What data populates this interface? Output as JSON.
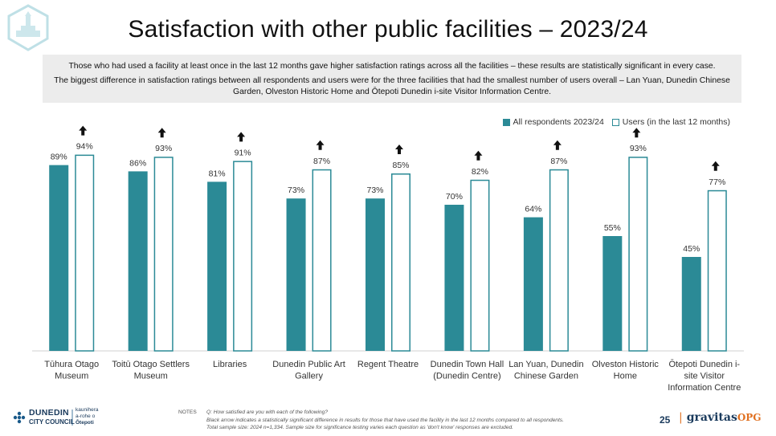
{
  "title": "Satisfaction with other public facilities – 2023/24",
  "summary": {
    "line1_main": "Those who had used a facility at least once in the last 12 months gave higher satisfaction ratings across all the facilities – these results are ",
    "line1_emph": "statistically significant in every case.",
    "line2": "The biggest difference in satisfaction ratings between all respondents and users were for the three facilities that had the smallest number of users overall – Lan Yuan, Dunedin Chinese Garden, Olveston Historic Home and Ōtepoti Dunedin i-site Visitor Information Centre."
  },
  "chart_data": {
    "type": "bar",
    "categories": [
      [
        "Tūhura Otago",
        "Museum"
      ],
      [
        "Toitū Otago Settlers",
        "Museum"
      ],
      [
        "Libraries"
      ],
      [
        "Dunedin Public Art",
        "Gallery"
      ],
      [
        "Regent Theatre"
      ],
      [
        "Dunedin Town Hall",
        "(Dunedin Centre)"
      ],
      [
        "Lan Yuan, Dunedin",
        "Chinese Garden"
      ],
      [
        "Olveston Historic",
        "Home"
      ],
      [
        "Ōtepoti Dunedin i-",
        "site Visitor",
        "Information Centre"
      ]
    ],
    "series": [
      {
        "name": "All respondents 2023/24",
        "style": "filled",
        "values": [
          89,
          86,
          81,
          73,
          73,
          70,
          64,
          55,
          45
        ]
      },
      {
        "name": "Users (in the last 12 months)",
        "style": "outline",
        "values": [
          94,
          93,
          91,
          87,
          85,
          82,
          87,
          93,
          77
        ]
      }
    ],
    "significant_higher": [
      true,
      true,
      true,
      true,
      true,
      true,
      true,
      true,
      true
    ],
    "value_suffix": "%",
    "ylim": [
      0,
      100
    ],
    "grid": false,
    "legend_position": "top-right",
    "colors": {
      "bar": "#2b8a96",
      "arrow": "#111111",
      "axis": "#d0d0d0"
    }
  },
  "logo": {
    "name": "DUNEDIN",
    "sub": "CITY COUNCIL",
    "maori1": "kaunihera",
    "maori2": "a-rohe o",
    "maori3": "Ōtepoti"
  },
  "notes": {
    "label": "NOTES",
    "lines": [
      "Q: How satisfied are you with each of the following?",
      "Black arrow indicates a statistically significant  difference in results for those that have used the facility in the last 12 months  compared to all respondents.",
      "Total sample size: 2024 n=1,334.  Sample size for significance testing varies each question as 'don't know' responses are excluded."
    ]
  },
  "page_number": "25",
  "brand": {
    "name": "gravitas",
    "suffix": "OPG"
  }
}
